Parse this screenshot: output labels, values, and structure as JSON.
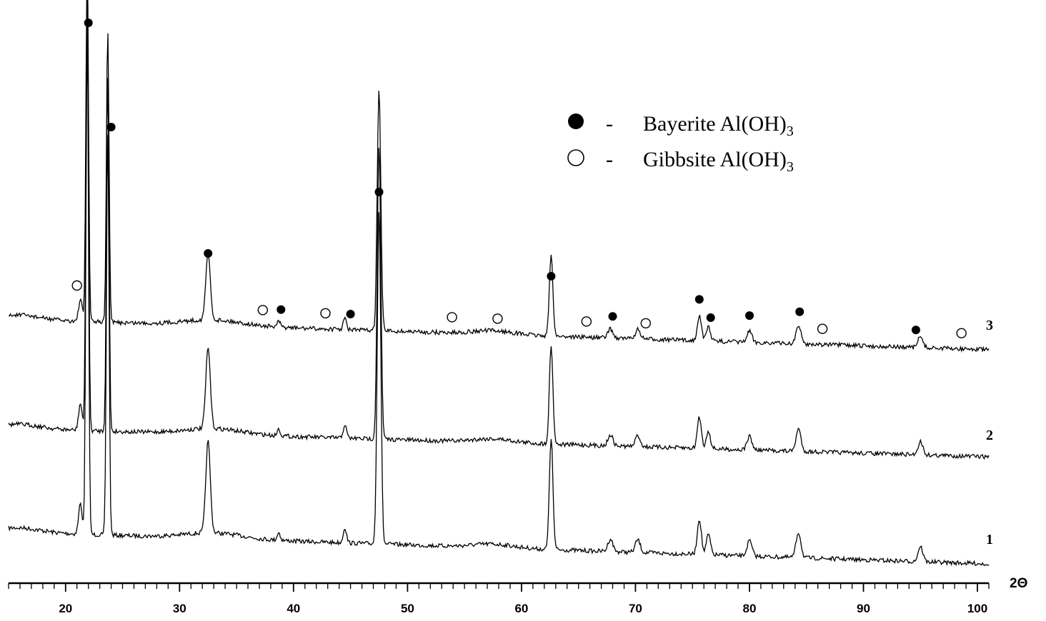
{
  "chart_data": {
    "type": "line",
    "xlabel": "2Θ",
    "xlim": [
      15,
      101
    ],
    "x_ticks": [
      "20",
      "30",
      "40",
      "50",
      "60",
      "70",
      "80",
      "90",
      "100"
    ],
    "grid": false,
    "legend": {
      "placement": "top-center-right",
      "entries": [
        {
          "marker": "filled-circle",
          "dash": "-",
          "name": "Bayerite",
          "formula": "Al(OH)",
          "subscript": "3",
          "color": "#000000"
        },
        {
          "marker": "open-circle",
          "dash": "-",
          "name": "Gibbsite",
          "formula": "Al(OH)",
          "subscript": "3",
          "color": "#000000"
        }
      ]
    },
    "series": [
      {
        "name": "1",
        "offset": 0
      },
      {
        "name": "2",
        "offset": 1
      },
      {
        "name": "3",
        "offset": 2
      }
    ],
    "peaks": [
      {
        "x": 21.3,
        "h": 0.06,
        "w": 0.22
      },
      {
        "x": 21.9,
        "h": 1.0,
        "w": 0.16
      },
      {
        "x": 23.7,
        "h": 0.8,
        "w": 0.16
      },
      {
        "x": 32.5,
        "h": 0.18,
        "w": 0.28
      },
      {
        "x": 38.7,
        "h": 0.015,
        "w": 0.2
      },
      {
        "x": 44.5,
        "h": 0.03,
        "w": 0.2
      },
      {
        "x": 47.5,
        "h": 0.66,
        "w": 0.22
      },
      {
        "x": 62.6,
        "h": 0.22,
        "w": 0.22
      },
      {
        "x": 67.8,
        "h": 0.025,
        "w": 0.3
      },
      {
        "x": 70.2,
        "h": 0.025,
        "w": 0.3
      },
      {
        "x": 75.6,
        "h": 0.07,
        "w": 0.25
      },
      {
        "x": 76.4,
        "h": 0.04,
        "w": 0.25
      },
      {
        "x": 80.0,
        "h": 0.03,
        "w": 0.3
      },
      {
        "x": 84.3,
        "h": 0.05,
        "w": 0.3
      },
      {
        "x": 95.0,
        "h": 0.03,
        "w": 0.3
      }
    ],
    "bayerite_markers": [
      22.0,
      24.0,
      32.5,
      38.9,
      45.0,
      47.5,
      62.6,
      68.0,
      75.6,
      76.6,
      80.0,
      84.4,
      94.6
    ],
    "gibbsite_markers": [
      21.0,
      37.3,
      42.8,
      53.9,
      57.9,
      65.7,
      70.9,
      86.4,
      98.6
    ]
  }
}
